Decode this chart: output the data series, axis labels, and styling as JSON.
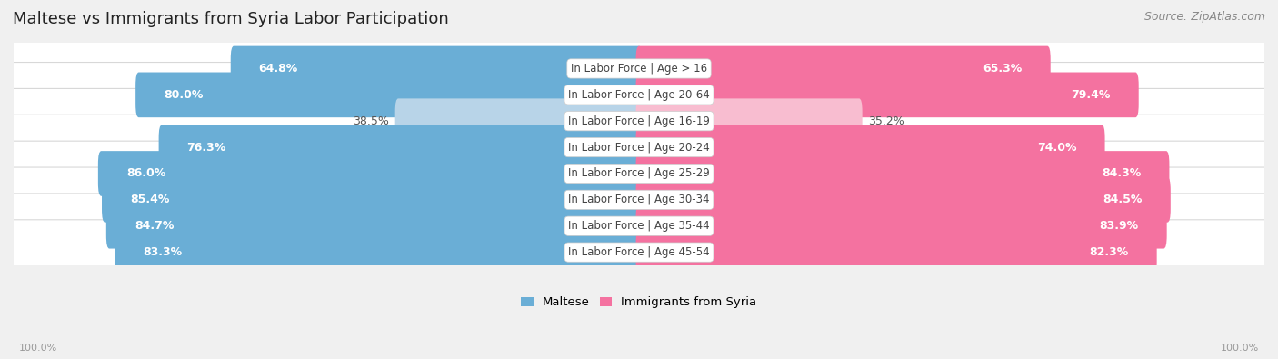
{
  "title": "Maltese vs Immigrants from Syria Labor Participation",
  "source": "Source: ZipAtlas.com",
  "categories": [
    "In Labor Force | Age > 16",
    "In Labor Force | Age 20-64",
    "In Labor Force | Age 16-19",
    "In Labor Force | Age 20-24",
    "In Labor Force | Age 25-29",
    "In Labor Force | Age 30-34",
    "In Labor Force | Age 35-44",
    "In Labor Force | Age 45-54"
  ],
  "maltese_values": [
    64.8,
    80.0,
    38.5,
    76.3,
    86.0,
    85.4,
    84.7,
    83.3
  ],
  "syria_values": [
    65.3,
    79.4,
    35.2,
    74.0,
    84.3,
    84.5,
    83.9,
    82.3
  ],
  "maltese_color": "#6AAED6",
  "maltese_color_light": "#B8D4E8",
  "syria_color": "#F472A0",
  "syria_color_light": "#F8BDD0",
  "bg_color": "#f0f0f0",
  "row_bg_color": "#ffffff",
  "row_border_color": "#d8d8d8",
  "label_white": "#ffffff",
  "label_dark": "#555555",
  "center_label_color": "#444444",
  "title_color": "#222222",
  "source_color": "#888888",
  "footer_color": "#999999",
  "max_value": 100.0,
  "title_fontsize": 13,
  "source_fontsize": 9,
  "value_fontsize": 9,
  "category_fontsize": 8.5,
  "legend_fontsize": 9.5,
  "footer_fontsize": 8
}
